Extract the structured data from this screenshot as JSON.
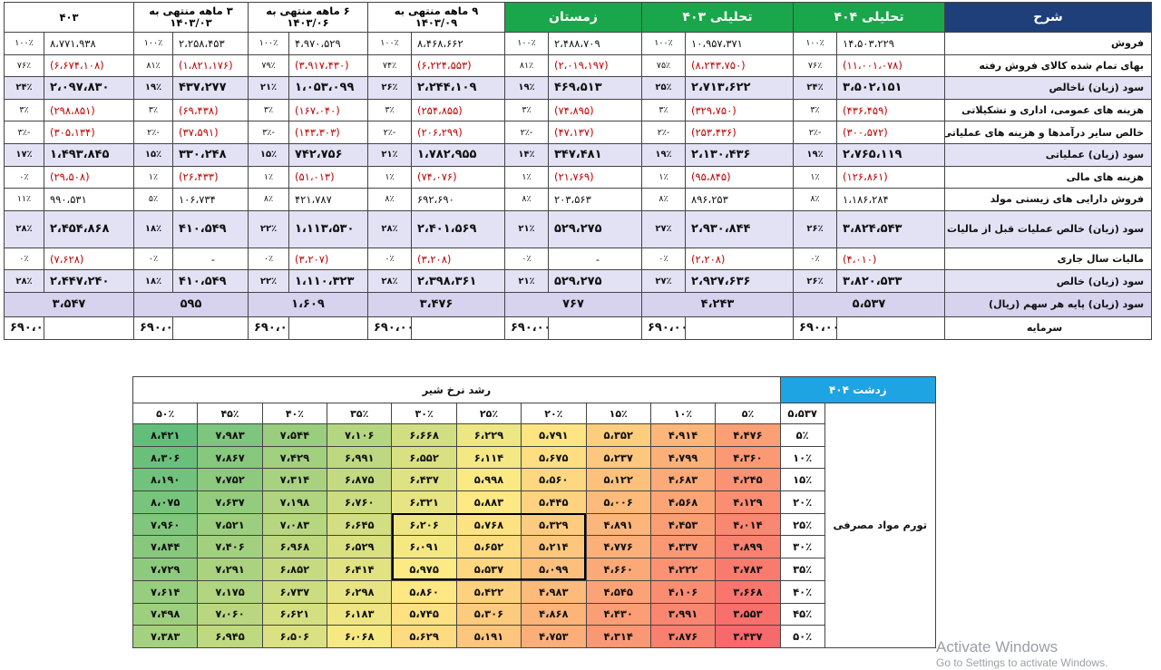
{
  "financial_table": {
    "headers": {
      "label": "شرح",
      "columns": [
        {
          "title": "تحلیلی ۴۰۴",
          "style": "green"
        },
        {
          "title": "تحلیلی ۴۰۳",
          "style": "green"
        },
        {
          "title": "زمستان",
          "style": "green"
        },
        {
          "title": "۹ ماهه منتهی به\n۱۴۰۳/۰۹",
          "style": "plain"
        },
        {
          "title": "۶ ماهه منتهی به\n۱۴۰۳/۰۶",
          "style": "plain"
        },
        {
          "title": "۳ ماهه منتهی به\n۱۴۰۳/۰۳",
          "style": "plain"
        },
        {
          "title": "۴۰۳",
          "style": "plain"
        }
      ]
    },
    "rows": [
      {
        "label": "فروش",
        "kind": "normal",
        "cells": [
          {
            "v": "۱۴،۵۰۳،۲۲۹",
            "p": "۱۰۰٪",
            "neg": false
          },
          {
            "v": "۱۰،۹۵۷،۳۷۱",
            "p": "۱۰۰٪",
            "neg": false
          },
          {
            "v": "۲،۴۸۸،۷۰۹",
            "p": "۱۰۰٪",
            "neg": false
          },
          {
            "v": "۸،۴۶۸،۶۶۲",
            "p": "۱۰۰٪",
            "neg": false
          },
          {
            "v": "۴،۹۷۰،۵۲۹",
            "p": "۱۰۰٪",
            "neg": false
          },
          {
            "v": "۲،۲۵۸،۴۵۳",
            "p": "۱۰۰٪",
            "neg": false
          },
          {
            "v": "۸،۷۷۱،۹۳۸",
            "p": "۱۰۰٪",
            "neg": false
          }
        ]
      },
      {
        "label": "بهای تمام شده کالای فروش رفته",
        "kind": "normal",
        "cells": [
          {
            "v": "(۱۱،۰۰۱،۰۷۸)",
            "p": "۷۶٪",
            "neg": true
          },
          {
            "v": "(۸،۲۴۳،۷۵۰)",
            "p": "۷۵٪",
            "neg": true
          },
          {
            "v": "(۲،۰۱۹،۱۹۷)",
            "p": "۸۱٪",
            "neg": true
          },
          {
            "v": "(۶،۲۲۴،۵۵۳)",
            "p": "۷۴٪",
            "neg": true
          },
          {
            "v": "(۳،۹۱۷،۴۳۰)",
            "p": "۷۹٪",
            "neg": true
          },
          {
            "v": "(۱،۸۲۱،۱۷۶)",
            "p": "۸۱٪",
            "neg": true
          },
          {
            "v": "(۶،۶۷۴،۱۰۸)",
            "p": "۷۶٪",
            "neg": true
          }
        ]
      },
      {
        "label": "سود (زیان) ناخالص",
        "kind": "bold",
        "cells": [
          {
            "v": "۳،۵۰۲،۱۵۱",
            "p": "۲۴٪",
            "neg": false
          },
          {
            "v": "۲،۷۱۳،۶۲۲",
            "p": "۲۵٪",
            "neg": false
          },
          {
            "v": "۴۶۹،۵۱۳",
            "p": "۱۹٪",
            "neg": false
          },
          {
            "v": "۲،۲۴۴،۱۰۹",
            "p": "۲۶٪",
            "neg": false
          },
          {
            "v": "۱،۰۵۳،۰۹۹",
            "p": "۲۱٪",
            "neg": false
          },
          {
            "v": "۴۳۷،۲۷۷",
            "p": "۱۹٪",
            "neg": false
          },
          {
            "v": "۲،۰۹۷،۸۳۰",
            "p": "۲۴٪",
            "neg": false
          }
        ]
      },
      {
        "label": "هزینه های عمومی، اداری و تشکیلاتی",
        "kind": "normal",
        "cells": [
          {
            "v": "(۴۳۶،۴۵۹)",
            "p": "۳٪",
            "neg": true
          },
          {
            "v": "(۳۲۹،۷۵۰)",
            "p": "۳٪",
            "neg": true
          },
          {
            "v": "(۷۴،۸۹۵)",
            "p": "۳٪",
            "neg": true
          },
          {
            "v": "(۲۵۴،۸۵۵)",
            "p": "۳٪",
            "neg": true
          },
          {
            "v": "(۱۶۷،۰۴۰)",
            "p": "۳٪",
            "neg": true
          },
          {
            "v": "(۶۹،۴۳۸)",
            "p": "۳٪",
            "neg": true
          },
          {
            "v": "(۲۹۸،۸۵۱)",
            "p": "۳٪",
            "neg": true
          }
        ]
      },
      {
        "label": "خالص سایر درآمدها و هزینه های عملیاتی",
        "kind": "normal",
        "cells": [
          {
            "v": "(۳۰۰،۵۷۲)",
            "p": "۲٪-",
            "neg": true
          },
          {
            "v": "(۲۵۳،۴۳۶)",
            "p": "۲٪-",
            "neg": true
          },
          {
            "v": "(۴۷،۱۳۷)",
            "p": "۲٪-",
            "neg": true
          },
          {
            "v": "(۲۰۶،۲۹۹)",
            "p": "۲٪-",
            "neg": true
          },
          {
            "v": "(۱۴۳،۳۰۳)",
            "p": "۳٪-",
            "neg": true
          },
          {
            "v": "(۳۷،۵۹۱)",
            "p": "۲٪-",
            "neg": true
          },
          {
            "v": "(۳۰۵،۱۳۴)",
            "p": "۳٪-",
            "neg": true
          }
        ]
      },
      {
        "label": "سود (زیان) عملیاتی",
        "kind": "bold",
        "cells": [
          {
            "v": "۲،۷۶۵،۱۱۹",
            "p": "۱۹٪",
            "neg": false
          },
          {
            "v": "۲،۱۳۰،۴۳۶",
            "p": "۱۹٪",
            "neg": false
          },
          {
            "v": "۳۴۷،۴۸۱",
            "p": "۱۴٪",
            "neg": false
          },
          {
            "v": "۱،۷۸۲،۹۵۵",
            "p": "۲۱٪",
            "neg": false
          },
          {
            "v": "۷۴۲،۷۵۶",
            "p": "۱۵٪",
            "neg": false
          },
          {
            "v": "۳۳۰،۲۴۸",
            "p": "۱۵٪",
            "neg": false
          },
          {
            "v": "۱،۴۹۳،۸۴۵",
            "p": "۱۷٪",
            "neg": false
          }
        ]
      },
      {
        "label": "هزینه های مالی",
        "kind": "normal",
        "cells": [
          {
            "v": "(۱۲۶،۸۶۱)",
            "p": "۱٪",
            "neg": true
          },
          {
            "v": "(۹۵،۸۴۵)",
            "p": "۱٪",
            "neg": true
          },
          {
            "v": "(۲۱،۷۶۹)",
            "p": "۱٪",
            "neg": true
          },
          {
            "v": "(۷۴،۰۷۶)",
            "p": "۱٪",
            "neg": true
          },
          {
            "v": "(۵۱،۰۱۳)",
            "p": "۱٪",
            "neg": true
          },
          {
            "v": "(۲۶،۴۳۳)",
            "p": "۱٪",
            "neg": true
          },
          {
            "v": "(۲۹،۵۰۸)",
            "p": "۰٪",
            "neg": true
          }
        ]
      },
      {
        "label": "فروش دارایی های زیستی مولد",
        "kind": "normal",
        "cells": [
          {
            "v": "۱،۱۸۶،۲۸۴",
            "p": "۸٪",
            "neg": false
          },
          {
            "v": "۸۹۶،۲۵۳",
            "p": "۸٪",
            "neg": false
          },
          {
            "v": "۲۰۳،۵۶۳",
            "p": "۸٪",
            "neg": false
          },
          {
            "v": "۶۹۲،۶۹۰",
            "p": "۸٪",
            "neg": false
          },
          {
            "v": "۴۲۱،۷۸۷",
            "p": "۸٪",
            "neg": false
          },
          {
            "v": "۱۰۶،۷۳۴",
            "p": "۵٪",
            "neg": false
          },
          {
            "v": "۹۹۰،۵۳۱",
            "p": "۱۱٪",
            "neg": false
          }
        ]
      },
      {
        "label": "سود (زیان) خالص عملیات قبل از مالیات",
        "kind": "bold",
        "tall": true,
        "cells": [
          {
            "v": "۳،۸۲۴،۵۴۳",
            "p": "۲۶٪",
            "neg": false
          },
          {
            "v": "۲،۹۳۰،۸۴۴",
            "p": "۲۷٪",
            "neg": false
          },
          {
            "v": "۵۲۹،۲۷۵",
            "p": "۲۱٪",
            "neg": false
          },
          {
            "v": "۲،۴۰۱،۵۶۹",
            "p": "۲۸٪",
            "neg": false
          },
          {
            "v": "۱،۱۱۳،۵۳۰",
            "p": "۲۲٪",
            "neg": false
          },
          {
            "v": "۴۱۰،۵۴۹",
            "p": "۱۸٪",
            "neg": false
          },
          {
            "v": "۲،۴۵۴،۸۶۸",
            "p": "۲۸٪",
            "neg": false
          }
        ]
      },
      {
        "label": "مالیات سال جاری",
        "kind": "normal",
        "cells": [
          {
            "v": "(۴،۰۱۰)",
            "p": "۰٪",
            "neg": true
          },
          {
            "v": "(۲،۲۰۸)",
            "p": "۰٪",
            "neg": true
          },
          {
            "v": "-",
            "p": "۰٪",
            "neg": false,
            "center": true
          },
          {
            "v": "(۳،۲۰۸)",
            "p": "۰٪",
            "neg": true
          },
          {
            "v": "(۳،۲۰۷)",
            "p": "۰٪",
            "neg": true
          },
          {
            "v": "-",
            "p": "۰٪",
            "neg": false,
            "center": true
          },
          {
            "v": "(۷،۶۲۸)",
            "p": "۰٪",
            "neg": true
          }
        ]
      },
      {
        "label": "سود (زیان) خالص",
        "kind": "bold",
        "cells": [
          {
            "v": "۳،۸۲۰،۵۳۳",
            "p": "۲۶٪",
            "neg": false
          },
          {
            "v": "۲،۹۲۷،۶۳۶",
            "p": "۲۷٪",
            "neg": false
          },
          {
            "v": "۵۲۹،۲۷۵",
            "p": "۲۱٪",
            "neg": false
          },
          {
            "v": "۲،۳۹۸،۳۶۱",
            "p": "۲۸٪",
            "neg": false
          },
          {
            "v": "۱،۱۱۰،۳۲۳",
            "p": "۲۲٪",
            "neg": false
          },
          {
            "v": "۴۱۰،۵۴۹",
            "p": "۱۸٪",
            "neg": false
          },
          {
            "v": "۲،۴۴۷،۲۴۰",
            "p": "۲۸٪",
            "neg": false
          }
        ]
      }
    ],
    "eps": {
      "label": "سود (زیان)  پایه هر سهم (ریال)",
      "values": [
        "۵،۵۳۷",
        "۴،۲۴۳",
        "۷۶۷",
        "۳،۴۷۶",
        "۱،۶۰۹",
        "۵۹۵",
        "۳،۵۴۷"
      ]
    },
    "capital": {
      "label": "سرمایه",
      "values": [
        "۶۹۰،۰۰۰",
        "۶۹۰،۰۰۰",
        "۶۹۰،۰۰۰",
        "۶۹۰،۰۰۰",
        "۶۹۰،۰۰۰",
        "۶۹۰،۰۰۰",
        "۶۹۰،۰۰۰"
      ]
    }
  },
  "sensitivity": {
    "scenario_label": "زدشت ۴۰۴",
    "title": "رشد نرخ شیر",
    "row_axis_label": "تورم مواد مصرفی",
    "base_value": "۵،۵۳۷",
    "col_headers": [
      "۵٪",
      "۱۰٪",
      "۱۵٪",
      "۲۰٪",
      "۲۵٪",
      "۳۰٪",
      "۳۵٪",
      "۴۰٪",
      "۴۵٪",
      "۵۰٪"
    ],
    "row_headers": [
      "۵٪",
      "۱۰٪",
      "۱۵٪",
      "۲۰٪",
      "۲۵٪",
      "۳۰٪",
      "۳۵٪",
      "۴۰٪",
      "۴۵٪",
      "۵۰٪"
    ],
    "values": [
      [
        4476,
        4914,
        5352,
        5791,
        6229,
        6668,
        7106,
        7544,
        7983,
        8421
      ],
      [
        4360,
        4799,
        5237,
        5675,
        6114,
        6552,
        6991,
        7429,
        7867,
        8306
      ],
      [
        4245,
        4683,
        5122,
        5560,
        5998,
        6437,
        6875,
        7314,
        7752,
        8190
      ],
      [
        4129,
        4568,
        5006,
        5445,
        5883,
        6321,
        6760,
        7198,
        7637,
        8075
      ],
      [
        4014,
        4453,
        4891,
        5329,
        5768,
        6206,
        6645,
        7083,
        7521,
        7960
      ],
      [
        3899,
        4337,
        4776,
        5214,
        5652,
        6091,
        6529,
        6968,
        7406,
        7844
      ],
      [
        3783,
        4222,
        4660,
        5099,
        5537,
        5975,
        6414,
        6852,
        7291,
        7729
      ],
      [
        3668,
        4106,
        4545,
        4983,
        5422,
        5860,
        6298,
        6737,
        7175,
        7614
      ],
      [
        3553,
        3991,
        4430,
        4868,
        5306,
        5745,
        6183,
        6621,
        7060,
        7498
      ],
      [
        3437,
        3876,
        4314,
        4753,
        5191,
        5629,
        6068,
        6506,
        6945,
        7383
      ]
    ],
    "highlight": {
      "cols": [
        3,
        5
      ],
      "rows": [
        4,
        6
      ]
    },
    "colors": {
      "low": "#f8696b",
      "mid": "#ffeb84",
      "high": "#63be7b",
      "scenario": "#1ea3e3"
    }
  },
  "watermark": {
    "line1": "Activate Windows",
    "line2": "Go to Settings to activate Windows."
  }
}
